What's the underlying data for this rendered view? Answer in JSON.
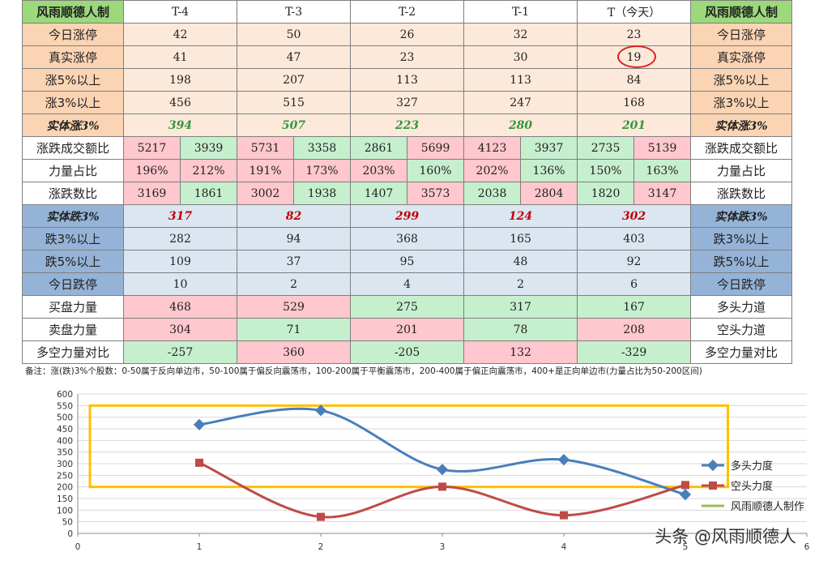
{
  "table": {
    "corner_left": "风雨顺德人制",
    "corner_right": "风雨顺德人制",
    "days": [
      "T-4",
      "T-3",
      "T-2",
      "T-1",
      "T（今天）"
    ],
    "rows_top": [
      {
        "label": "今日涨停",
        "label_right": "今日涨停",
        "values": [
          "42",
          "50",
          "26",
          "32",
          "23"
        ]
      },
      {
        "label": "真实涨停",
        "label_right": "真实涨停",
        "values": [
          "41",
          "47",
          "23",
          "30",
          "19"
        ]
      },
      {
        "label": "涨5%以上",
        "label_right": "涨5%以上",
        "values": [
          "198",
          "207",
          "113",
          "113",
          "84"
        ]
      },
      {
        "label": "涨3%以上",
        "label_right": "涨3%以上",
        "values": [
          "456",
          "515",
          "327",
          "247",
          "168"
        ]
      }
    ],
    "shiti_up": {
      "label": "实体涨3%",
      "label_right": "实体涨3%",
      "values": [
        "394",
        "507",
        "223",
        "280",
        "201"
      ]
    },
    "pair_rows": [
      {
        "label": "涨跌成交额比",
        "label_right": "涨跌成交额比",
        "values": [
          [
            "5217",
            "3939"
          ],
          [
            "5731",
            "3358"
          ],
          [
            "2861",
            "5699"
          ],
          [
            "4123",
            "3937"
          ],
          [
            "2735",
            "5139"
          ]
        ]
      },
      {
        "label": "力量占比",
        "label_right": "力量占比",
        "values": [
          [
            "196%",
            "212%"
          ],
          [
            "191%",
            "173%"
          ],
          [
            "203%",
            "160%"
          ],
          [
            "202%",
            "136%"
          ],
          [
            "150%",
            "163%"
          ]
        ]
      },
      {
        "label": "涨跌数比",
        "label_right": "涨跌数比",
        "values": [
          [
            "3169",
            "1861"
          ],
          [
            "3002",
            "1938"
          ],
          [
            "1407",
            "3573"
          ],
          [
            "2038",
            "2804"
          ],
          [
            "1820",
            "3147"
          ]
        ]
      }
    ],
    "shiti_down": {
      "label": "实体跌3%",
      "label_right": "实体跌3%",
      "values": [
        "317",
        "82",
        "299",
        "124",
        "302"
      ]
    },
    "rows_down": [
      {
        "label": "跌3%以上",
        "label_right": "跌3%以上",
        "values": [
          "282",
          "94",
          "368",
          "165",
          "403"
        ]
      },
      {
        "label": "跌5%以上",
        "label_right": "跌5%以上",
        "values": [
          "109",
          "37",
          "95",
          "48",
          "92"
        ]
      },
      {
        "label": "今日跌停",
        "label_right": "今日跌停",
        "values": [
          "10",
          "2",
          "4",
          "2",
          "6"
        ]
      }
    ],
    "rows_force": [
      {
        "label": "买盘力量",
        "label_right": "多头力道",
        "values": [
          "468",
          "529",
          "275",
          "317",
          "167"
        ]
      },
      {
        "label": "卖盘力量",
        "label_right": "空头力道",
        "values": [
          "304",
          "71",
          "201",
          "78",
          "208"
        ]
      },
      {
        "label": "多空力量对比",
        "label_right": "多空力量对比",
        "values": [
          "-257",
          "360",
          "-205",
          "132",
          "-329"
        ]
      }
    ]
  },
  "note": "备注：涨(跌)3%个股数：0-50属于反向单边市，50-100属于偏反向震荡市，100-200属于平衡震荡市，200-400属于偏正向震荡市，400+是正向单边市(力量占比为50-200区间)",
  "colors": {
    "bull": "#4a7ebb",
    "bear": "#be4b48",
    "maker": "#9bbb59",
    "box": "#ffc000"
  },
  "chart_data": {
    "type": "line",
    "xlim": [
      0,
      6
    ],
    "ylim": [
      0,
      600
    ],
    "x_ticks": [
      "0",
      "1",
      "2",
      "3",
      "4",
      "5",
      "6"
    ],
    "y_ticks": [
      "0",
      "50",
      "100",
      "150",
      "200",
      "250",
      "300",
      "350",
      "400",
      "450",
      "500",
      "550",
      "600"
    ],
    "series": [
      {
        "name": "多头力度",
        "x": [
          1,
          2,
          3,
          4,
          5
        ],
        "values": [
          468,
          529,
          275,
          317,
          167
        ]
      },
      {
        "name": "空头力度",
        "x": [
          1,
          2,
          3,
          4,
          5
        ],
        "values": [
          304,
          71,
          201,
          78,
          208
        ]
      },
      {
        "name": "风雨顺德人制作",
        "x": [],
        "values": []
      }
    ],
    "highlight_box_x": [
      0.1,
      5.35
    ],
    "highlight_box_y": [
      200,
      550
    ],
    "legend": "right"
  },
  "watermark": "头条 @风雨顺德人"
}
